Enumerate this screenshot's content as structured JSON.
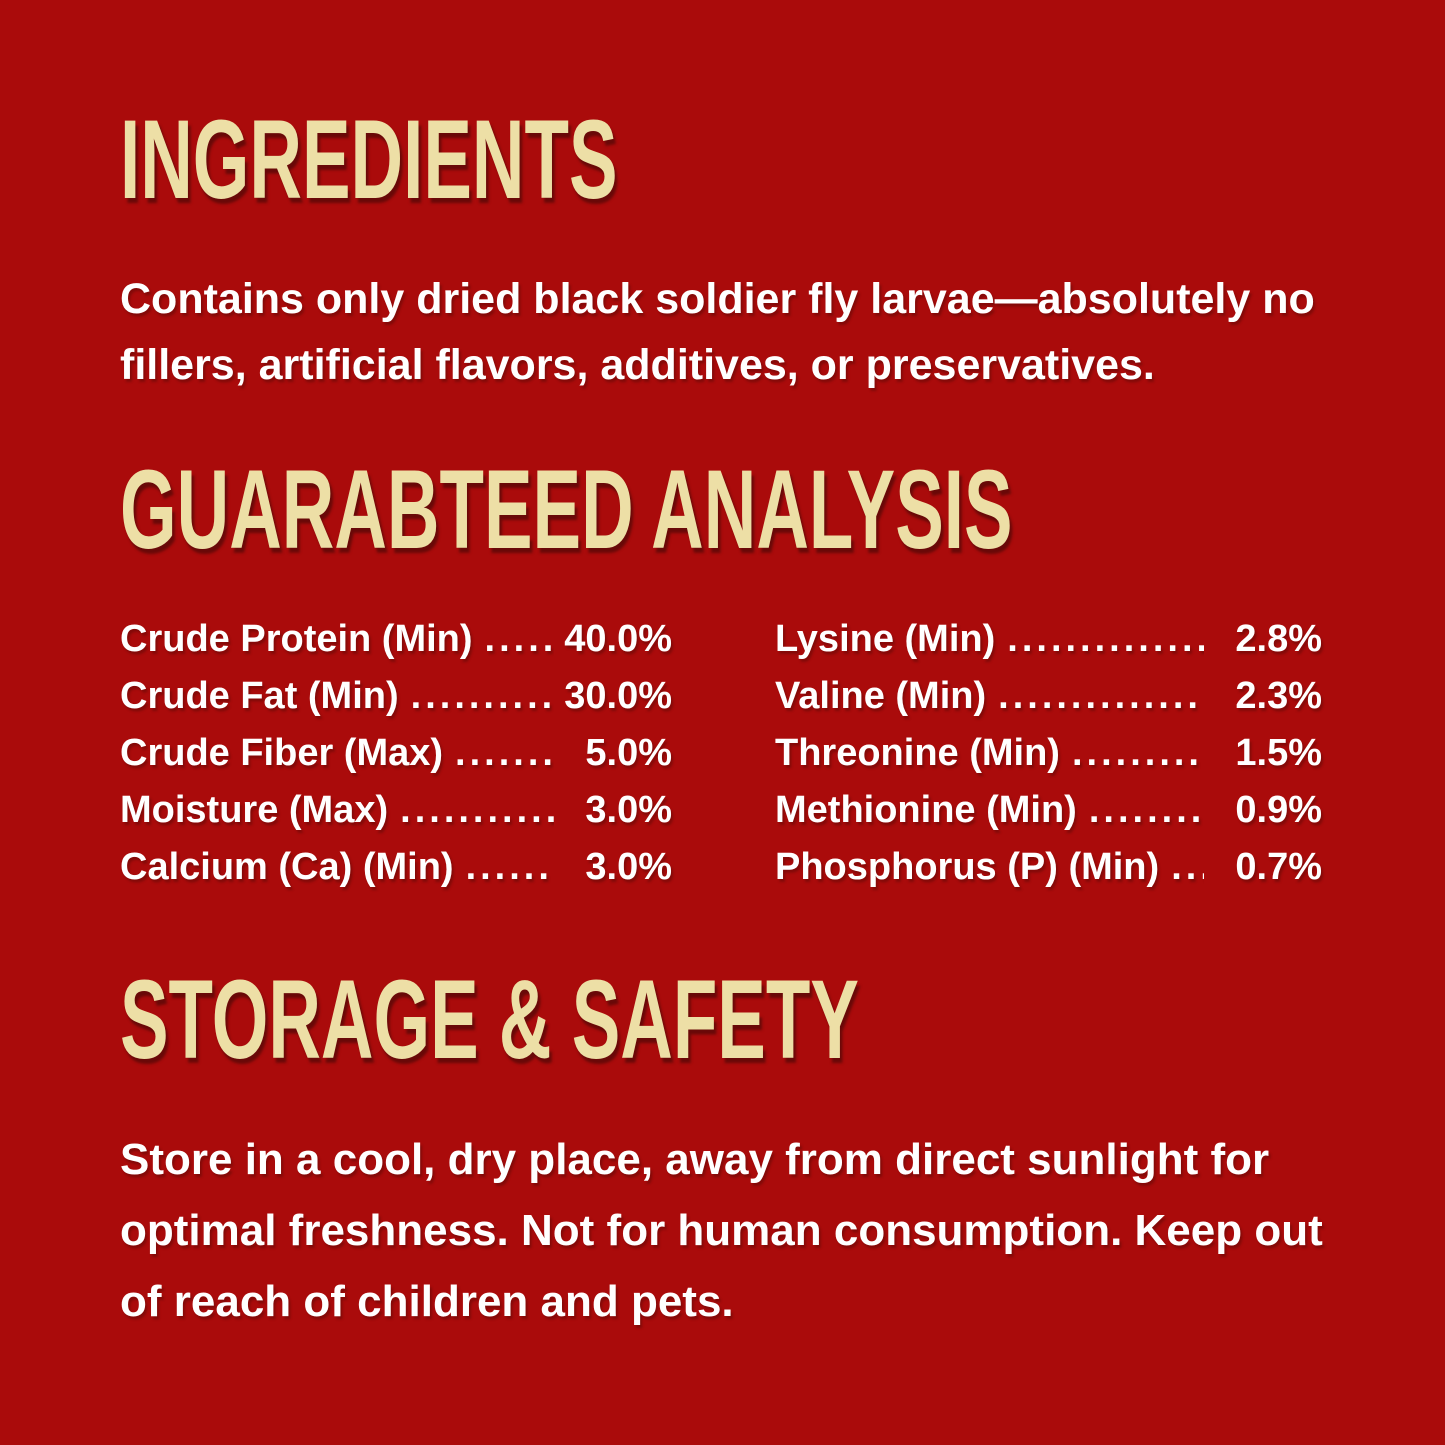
{
  "page": {
    "background_color": "#AA0B0B",
    "heading_color": "#EDDFA6",
    "body_text_color": "#FFFFFF"
  },
  "ingredients": {
    "heading": "INGREDIENTS",
    "body_lines": [
      "Contains only dried black soldier fly larvae—absolutely no",
      "fillers, artificial flavors, additives, or preservatives."
    ]
  },
  "analysis": {
    "heading": "GUARABTEED ANALYSIS",
    "leader_dots": "...............................................................",
    "left_column": [
      {
        "label": "Crude Protein (Min)",
        "value": "40.0%"
      },
      {
        "label": "Crude Fat (Min)",
        "value": "30.0%"
      },
      {
        "label": "Crude Fiber (Max)",
        "value": "5.0%"
      },
      {
        "label": "Moisture (Max)",
        "value": "3.0%"
      },
      {
        "label": "Calcium (Ca) (Min)",
        "value": "3.0%"
      }
    ],
    "right_column": [
      {
        "label": "Lysine (Min)",
        "value": "2.8%"
      },
      {
        "label": "Valine (Min)",
        "value": "2.3%"
      },
      {
        "label": "Threonine (Min)",
        "value": "1.5%"
      },
      {
        "label": "Methionine (Min)",
        "value": "0.9%"
      },
      {
        "label": "Phosphorus (P) (Min)",
        "value": "0.7%"
      }
    ]
  },
  "storage": {
    "heading": "STORAGE & SAFETY",
    "body_lines": [
      "Store in a cool, dry place, away from direct sunlight for",
      "optimal freshness. Not for human consumption. Keep out",
      "of reach of children and pets."
    ]
  }
}
